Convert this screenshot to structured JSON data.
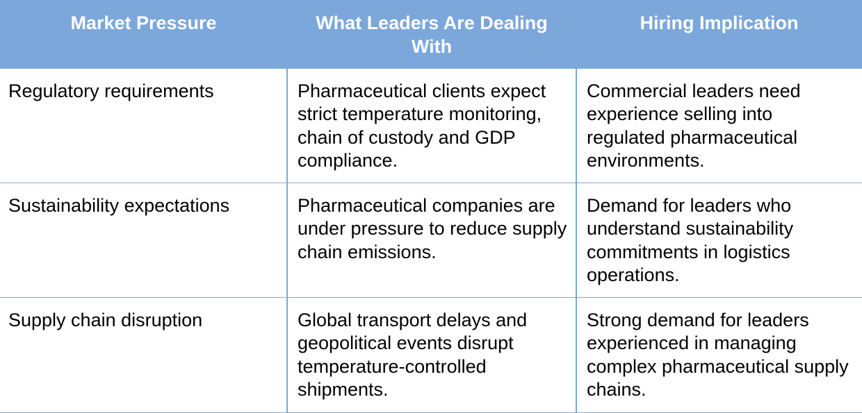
{
  "table": {
    "headers": [
      "Market Pressure",
      "What Leaders Are Dealing With",
      "Hiring Implication"
    ],
    "rows": [
      [
        "Regulatory requirements",
        "Pharmaceutical clients expect strict temperature monitoring, chain of custody and GDP compliance.",
        "Commercial leaders need experience selling into regulated pharmaceutical environments."
      ],
      [
        "Sustainability expectations",
        "Pharmaceutical companies are under pressure to reduce supply chain emissions.",
        "Demand for leaders who understand sustainability commitments in logistics operations."
      ],
      [
        "Supply chain disruption",
        "Global transport delays and geopolitical events disrupt temperature-controlled shipments.",
        "Strong demand for leaders experienced in managing complex pharmaceutical supply chains."
      ]
    ]
  }
}
